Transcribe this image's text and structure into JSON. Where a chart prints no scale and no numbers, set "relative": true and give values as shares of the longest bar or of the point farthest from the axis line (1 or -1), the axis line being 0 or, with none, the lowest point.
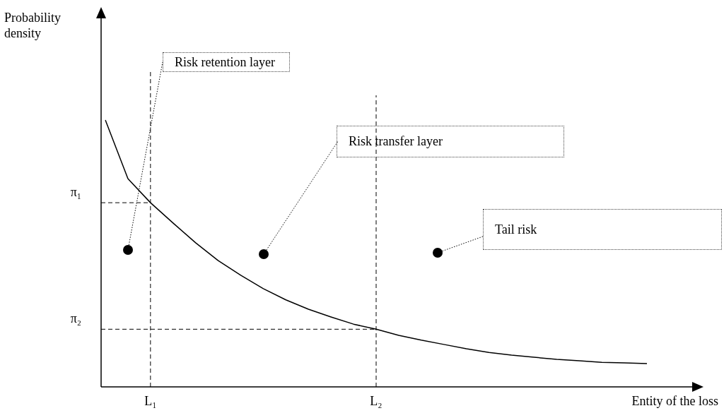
{
  "chart_data": {
    "type": "line",
    "relative": true,
    "xlabel": "Entity of the loss",
    "legend": false,
    "marker": "none",
    "line_style": "solid",
    "categories": [
      null,
      null,
      "L₁",
      null,
      null,
      null,
      null,
      null,
      null,
      null,
      null,
      null,
      "L₂",
      null,
      null,
      null,
      null,
      null,
      null,
      null,
      null,
      null,
      null,
      null,
      null
    ],
    "series": [
      {
        "color": "#000000",
        "values": [
          1,
          0.78,
          0.69,
          0.614,
          0.54,
          0.473,
          0.418,
          0.368,
          0.326,
          0.291,
          0.262,
          0.235,
          0.216,
          0.193,
          0.175,
          0.159,
          0.143,
          0.129,
          0.119,
          0.111,
          0.103,
          0.098,
          0.092,
          0.09,
          0.087
        ]
      }
    ],
    "ref_lines": [
      {
        "axis": "x",
        "value": "L₁",
        "line_style": "dashed"
      },
      {
        "axis": "x",
        "value": "L₂",
        "line_style": "dashed"
      },
      {
        "axis": "y",
        "value": 0.69,
        "label": "π₁",
        "line_style": "dashed"
      },
      {
        "axis": "y",
        "value": 0.216,
        "label": "π₂",
        "line_style": "dashed"
      }
    ],
    "annotations": [
      "Probability density",
      "Risk retention layer",
      "Risk transfer layer",
      "Tail risk"
    ]
  }
}
